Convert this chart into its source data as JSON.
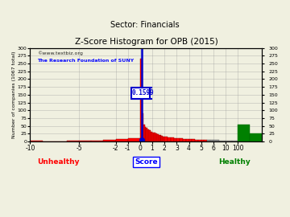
{
  "title": "Z-Score Histogram for OPB (2015)",
  "subtitle": "Sector: Financials",
  "xlabel": "Score",
  "ylabel": "Number of companies (1067 total)",
  "watermark1": "©www.textbiz.org",
  "watermark2": "The Research Foundation of SUNY",
  "zscore_marker": 0.1599,
  "zscore_label": "0.1599",
  "unhealthy_label": "Unhealthy",
  "healthy_label": "Healthy",
  "bg_color": "#f0f0e0",
  "grid_color": "#999999",
  "marker_color": "#0000cc",
  "crosshair_color": "#0000cc",
  "label_box_facecolor": "#ffffff",
  "label_text_color": "#0000cc",
  "x_tick_labels": [
    "-10",
    "-5",
    "-2",
    "-1",
    "0",
    "1",
    "2",
    "3",
    "4",
    "5",
    "6",
    "10",
    "100"
  ],
  "x_tick_positions": [
    0,
    4,
    7,
    8,
    9,
    10,
    11,
    12,
    13,
    14,
    15,
    16,
    17
  ],
  "yticks": [
    0,
    25,
    50,
    75,
    100,
    125,
    150,
    175,
    200,
    225,
    250,
    275,
    300
  ],
  "ylim": [
    0,
    300
  ],
  "total_cols": 18,
  "bar_specs": [
    [
      0,
      1,
      2,
      "red"
    ],
    [
      1,
      1,
      1,
      "red"
    ],
    [
      2,
      1,
      1,
      "red"
    ],
    [
      3,
      1,
      2,
      "red"
    ],
    [
      4,
      1,
      3,
      "red"
    ],
    [
      5,
      1,
      3,
      "red"
    ],
    [
      6,
      1,
      5,
      "red"
    ],
    [
      7,
      1,
      8,
      "red"
    ],
    [
      8,
      1,
      10,
      "red"
    ],
    [
      9,
      0.125,
      265,
      "red"
    ],
    [
      9.125,
      0.125,
      90,
      "red"
    ],
    [
      9.25,
      0.125,
      55,
      "red"
    ],
    [
      9.375,
      0.125,
      48,
      "red"
    ],
    [
      9.5,
      0.125,
      44,
      "red"
    ],
    [
      9.625,
      0.125,
      40,
      "red"
    ],
    [
      9.75,
      0.125,
      36,
      "red"
    ],
    [
      9.875,
      0.125,
      32,
      "red"
    ],
    [
      10.0,
      0.125,
      30,
      "red"
    ],
    [
      10.125,
      0.125,
      28,
      "red"
    ],
    [
      10.25,
      0.125,
      26,
      "red"
    ],
    [
      10.375,
      0.125,
      24,
      "red"
    ],
    [
      10.5,
      0.125,
      22,
      "red"
    ],
    [
      10.625,
      0.125,
      20,
      "red"
    ],
    [
      10.75,
      0.125,
      18,
      "red"
    ],
    [
      10.875,
      0.125,
      17,
      "red"
    ],
    [
      11.0,
      0.25,
      16,
      "red"
    ],
    [
      11.25,
      0.25,
      14,
      "red"
    ],
    [
      11.5,
      0.25,
      13,
      "red"
    ],
    [
      11.75,
      0.25,
      12,
      "red"
    ],
    [
      12.0,
      0.25,
      11,
      "red"
    ],
    [
      12.25,
      0.25,
      10,
      "red"
    ],
    [
      12.5,
      0.25,
      9,
      "red"
    ],
    [
      12.75,
      0.25,
      8,
      "red"
    ],
    [
      13.0,
      0.25,
      7,
      "red"
    ],
    [
      13.25,
      0.25,
      7,
      "red"
    ],
    [
      13.5,
      0.25,
      6,
      "red"
    ],
    [
      13.75,
      0.25,
      6,
      "red"
    ],
    [
      14.0,
      0.25,
      6,
      "red"
    ],
    [
      14.25,
      0.25,
      5,
      "red"
    ],
    [
      14.5,
      0.25,
      5,
      "gray"
    ],
    [
      14.75,
      0.25,
      5,
      "gray"
    ],
    [
      15.0,
      0.5,
      5,
      "gray"
    ],
    [
      15.5,
      0.5,
      4,
      "gray"
    ],
    [
      16.0,
      0.5,
      4,
      "gray"
    ],
    [
      16.5,
      0.5,
      3,
      "gray"
    ],
    [
      17.0,
      1.0,
      55,
      "green"
    ],
    [
      18.0,
      1.0,
      25,
      "green"
    ]
  ]
}
